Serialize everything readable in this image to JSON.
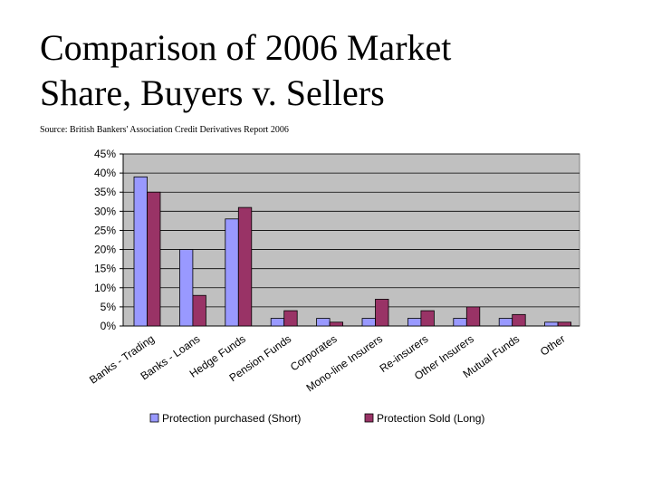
{
  "slide": {
    "title_line1": "Comparison of 2006 Market",
    "title_line2": "Share, Buyers v. Sellers",
    "source": "Source: British Bankers' Association Credit Derivatives Report 2006"
  },
  "chart_data": {
    "type": "bar",
    "title": "",
    "xlabel": "",
    "ylabel": "",
    "ylim": [
      0,
      45
    ],
    "ytick_step": 5,
    "ytick_suffix": "%",
    "grid": true,
    "legend_position": "bottom",
    "plot_background": "#c0c0c0",
    "categories": [
      "Banks - Trading",
      "Banks - Loans",
      "Hedge Funds",
      "Pension Funds",
      "Corporates",
      "Mono-line Insurers",
      "Re-insurers",
      "Other Insurers",
      "Mutual Funds",
      "Other"
    ],
    "series": [
      {
        "name": "Protection purchased (Short)",
        "color": "#9999ff",
        "values": [
          39,
          20,
          28,
          2,
          2,
          2,
          2,
          2,
          2,
          1
        ]
      },
      {
        "name": "Protection Sold (Long)",
        "color": "#993366",
        "values": [
          35,
          8,
          31,
          4,
          1,
          7,
          4,
          5,
          3,
          1
        ]
      }
    ]
  }
}
